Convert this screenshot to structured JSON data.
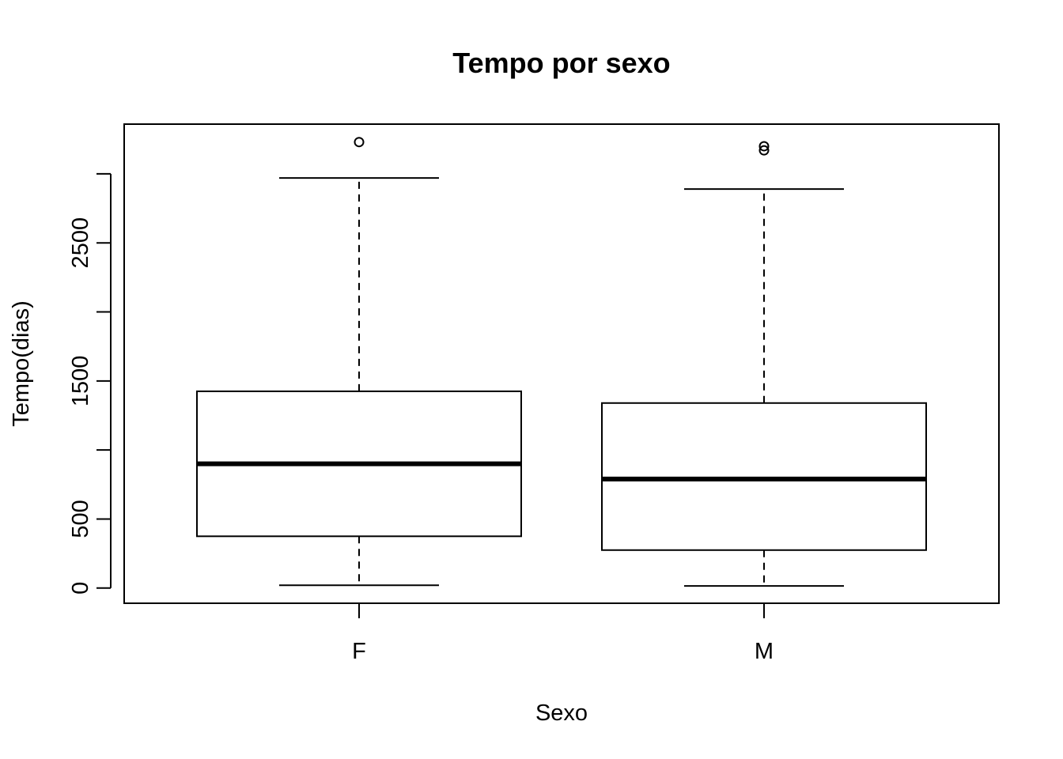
{
  "chart_data": {
    "type": "boxplot",
    "title": "Tempo por sexo",
    "xlabel": "Sexo",
    "ylabel": "Tempo(dias)",
    "categories": [
      "F",
      "M"
    ],
    "ylim": [
      -110,
      3360
    ],
    "yticks": [
      0,
      500,
      1000,
      1500,
      2000,
      2500,
      3000
    ],
    "ytick_labels": [
      "0",
      "500",
      "",
      "1500",
      "",
      "2500",
      ""
    ],
    "grid": false,
    "boxes": [
      {
        "category": "F",
        "lower_whisker": 20,
        "q1": 375,
        "median": 900,
        "q3": 1425,
        "upper_whisker": 2970,
        "outliers": [
          3230
        ]
      },
      {
        "category": "M",
        "lower_whisker": 15,
        "q1": 275,
        "median": 790,
        "q3": 1340,
        "upper_whisker": 2890,
        "outliers": [
          3200,
          3170
        ]
      }
    ]
  }
}
